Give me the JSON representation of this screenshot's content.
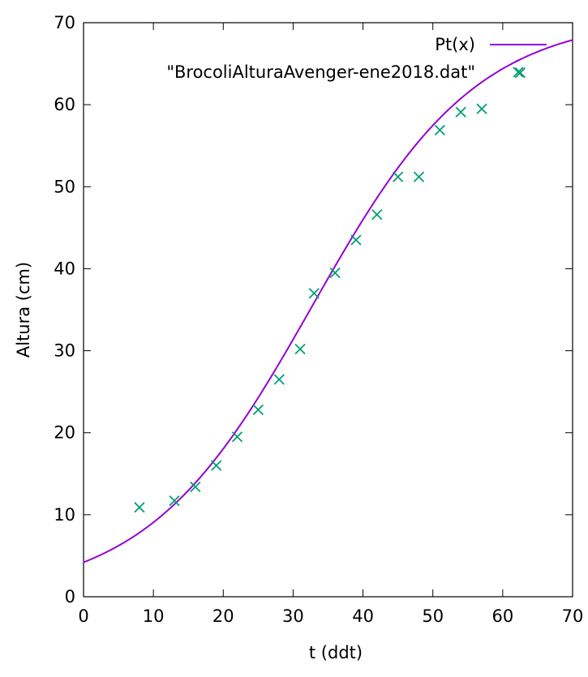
{
  "chart_data": {
    "type": "line",
    "xlabel": "t (ddt)",
    "ylabel": "Altura (cm)",
    "xlim": [
      0,
      70
    ],
    "ylim": [
      0,
      70
    ],
    "xticks": [
      "0",
      "10",
      "20",
      "30",
      "40",
      "50",
      "60",
      "70"
    ],
    "yticks": [
      "0",
      "10",
      "20",
      "30",
      "40",
      "50",
      "60",
      "70"
    ],
    "grid": false,
    "legend_position": "top-right",
    "series": [
      {
        "name": "Pt(x)",
        "kind": "line",
        "color": "#9400d3",
        "model": "logistic",
        "params": {
          "K": 70.8,
          "r": 0.0845,
          "t0": 32.7
        }
      },
      {
        "name": "\"BrocoliAlturaAvenger-ene2018.dat\"",
        "kind": "scatter",
        "marker": "x",
        "color": "#009e73",
        "points": [
          [
            8,
            10.9
          ],
          [
            13,
            11.7
          ],
          [
            16,
            13.4
          ],
          [
            19,
            16.0
          ],
          [
            22,
            19.5
          ],
          [
            25,
            22.8
          ],
          [
            28,
            26.5
          ],
          [
            31,
            30.2
          ],
          [
            33,
            37.0
          ],
          [
            36,
            39.5
          ],
          [
            39,
            43.5
          ],
          [
            42,
            46.6
          ],
          [
            45,
            51.2
          ],
          [
            48,
            51.2
          ],
          [
            51,
            56.9
          ],
          [
            54,
            59.1
          ],
          [
            57,
            59.5
          ],
          [
            62.5,
            63.9
          ]
        ]
      }
    ]
  }
}
